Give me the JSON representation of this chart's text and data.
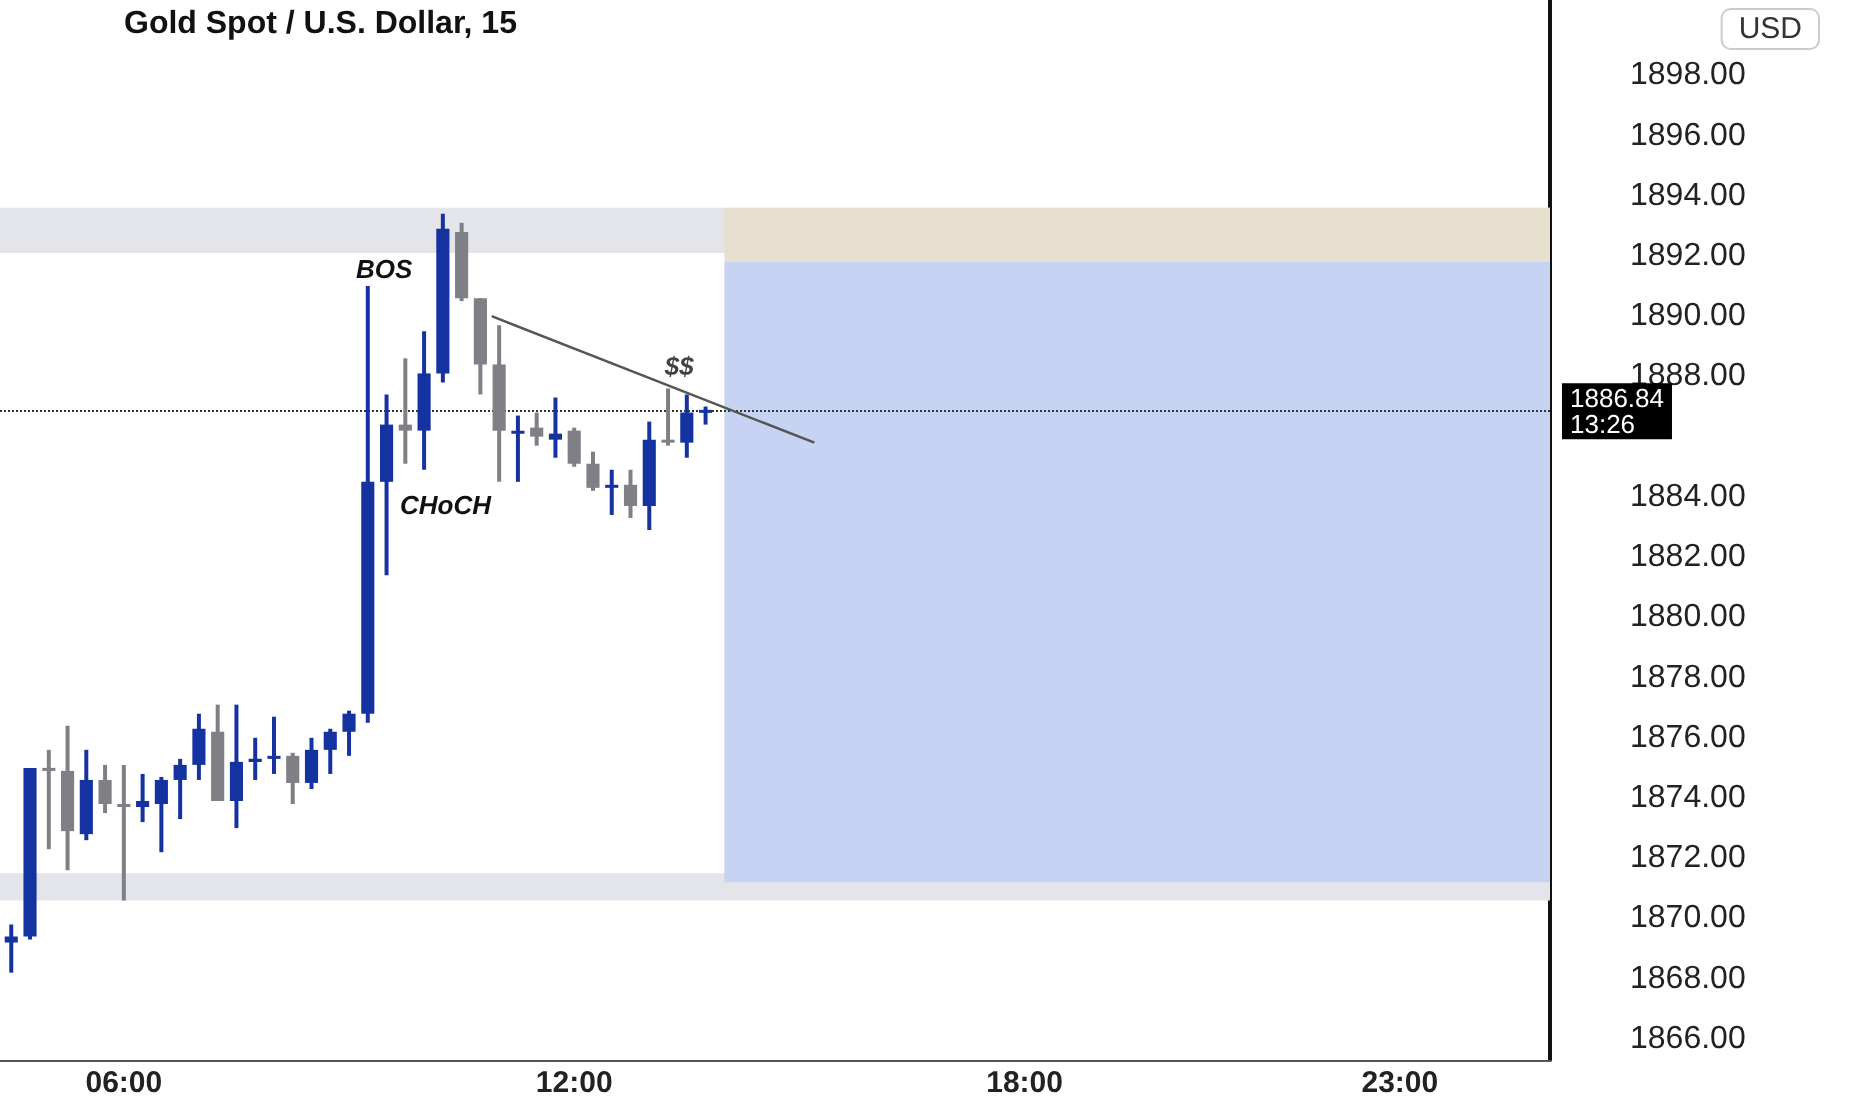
{
  "chart_data": {
    "type": "candlestick",
    "title": "Gold Spot / U.S. Dollar, 15",
    "x": [
      4.5,
      4.75,
      5,
      5.25,
      5.5,
      5.75,
      6,
      6.25,
      6.5,
      6.75,
      7,
      7.25,
      7.5,
      7.75,
      8,
      8.25,
      8.5,
      8.75,
      9,
      9.25,
      9.5,
      9.75,
      10,
      10.25,
      10.5,
      10.75,
      11,
      11.25,
      11.5,
      11.75,
      12,
      12.25,
      12.5,
      12.75,
      13,
      13.25,
      13.5,
      13.75
    ],
    "ohlc": [
      [
        1869.2,
        1869.8,
        1868.2,
        1869.4
      ],
      [
        1869.4,
        1875.0,
        1869.3,
        1875.0
      ],
      [
        1875.0,
        1875.6,
        1872.3,
        1874.9
      ],
      [
        1874.9,
        1876.4,
        1871.6,
        1872.9
      ],
      [
        1872.8,
        1875.6,
        1872.6,
        1874.6
      ],
      [
        1874.6,
        1875.1,
        1873.5,
        1873.8
      ],
      [
        1873.8,
        1875.1,
        1870.6,
        1873.7
      ],
      [
        1873.7,
        1874.8,
        1873.2,
        1873.9
      ],
      [
        1873.8,
        1874.7,
        1872.2,
        1874.6
      ],
      [
        1874.6,
        1875.3,
        1873.3,
        1875.1
      ],
      [
        1875.1,
        1876.8,
        1874.6,
        1876.3
      ],
      [
        1876.2,
        1877.1,
        1873.9,
        1873.9
      ],
      [
        1873.9,
        1877.1,
        1873.0,
        1875.2
      ],
      [
        1875.2,
        1876.0,
        1874.6,
        1875.3
      ],
      [
        1875.3,
        1876.7,
        1874.8,
        1875.4
      ],
      [
        1875.4,
        1875.5,
        1873.8,
        1874.5
      ],
      [
        1874.5,
        1876.0,
        1874.3,
        1875.6
      ],
      [
        1875.6,
        1876.3,
        1874.8,
        1876.2
      ],
      [
        1876.2,
        1876.9,
        1875.4,
        1876.8
      ],
      [
        1876.8,
        1891.0,
        1876.5,
        1884.5
      ],
      [
        1884.5,
        1887.4,
        1881.4,
        1886.4
      ],
      [
        1886.4,
        1888.6,
        1885.1,
        1886.2
      ],
      [
        1886.2,
        1889.5,
        1884.9,
        1888.1
      ],
      [
        1888.1,
        1893.4,
        1887.8,
        1892.9
      ],
      [
        1892.8,
        1893.1,
        1890.5,
        1890.6
      ],
      [
        1890.6,
        1890.6,
        1887.4,
        1888.4
      ],
      [
        1888.4,
        1889.7,
        1884.5,
        1886.2
      ],
      [
        1886.1,
        1886.7,
        1884.5,
        1886.2
      ],
      [
        1886.3,
        1886.8,
        1885.7,
        1886.0
      ],
      [
        1885.9,
        1887.3,
        1885.3,
        1886.1
      ],
      [
        1886.2,
        1886.3,
        1885.0,
        1885.1
      ],
      [
        1885.1,
        1885.5,
        1884.2,
        1884.3
      ],
      [
        1884.3,
        1884.9,
        1883.4,
        1884.4
      ],
      [
        1884.4,
        1884.9,
        1883.3,
        1883.7
      ],
      [
        1883.7,
        1886.5,
        1882.9,
        1885.9
      ],
      [
        1885.9,
        1887.6,
        1885.7,
        1885.8
      ],
      [
        1885.8,
        1887.4,
        1885.3,
        1886.8
      ],
      [
        1886.8,
        1887.0,
        1886.4,
        1886.84
      ]
    ],
    "colors": [
      "#1533a0",
      "#1533a0",
      "#7f7f86",
      "#7f7f86",
      "#1533a0",
      "#7f7f86",
      "#7f7f86",
      "#1533a0",
      "#1533a0",
      "#1533a0",
      "#1533a0",
      "#7f7f86",
      "#1533a0",
      "#1533a0",
      "#1533a0",
      "#7f7f86",
      "#1533a0",
      "#1533a0",
      "#1533a0",
      "#1533a0",
      "#1533a0",
      "#7f7f86",
      "#1533a0",
      "#1533a0",
      "#7f7f86",
      "#7f7f86",
      "#7f7f86",
      "#1533a0",
      "#7f7f86",
      "#1533a0",
      "#7f7f86",
      "#7f7f86",
      "#1533a0",
      "#7f7f86",
      "#1533a0",
      "#7f7f86",
      "#1533a0",
      "#1533a0"
    ],
    "series": [
      {
        "type": "line",
        "color": "#555555",
        "x": [
          10.9,
          15.2
        ],
        "values": [
          1890.0,
          1885.8
        ]
      }
    ],
    "xlim": [
      4.35,
      25
    ],
    "xticks": [
      {
        "value": 6,
        "label": "06:00"
      },
      {
        "value": 12,
        "label": "12:00"
      },
      {
        "value": 18,
        "label": "18:00"
      },
      {
        "value": 23,
        "label": "23:00"
      }
    ],
    "ylim": [
      1865.3,
      1900.5
    ],
    "yticks": [
      {
        "value": 1866,
        "label": "1866.00"
      },
      {
        "value": 1868,
        "label": "1868.00"
      },
      {
        "value": 1870,
        "label": "1870.00"
      },
      {
        "value": 1872,
        "label": "1872.00"
      },
      {
        "value": 1874,
        "label": "1874.00"
      },
      {
        "value": 1876,
        "label": "1876.00"
      },
      {
        "value": 1878,
        "label": "1878.00"
      },
      {
        "value": 1880,
        "label": "1880.00"
      },
      {
        "value": 1882,
        "label": "1882.00"
      },
      {
        "value": 1884,
        "label": "1884.00"
      },
      {
        "value": 1888,
        "label": "1888.00"
      },
      {
        "value": 1890,
        "label": "1890.00"
      },
      {
        "value": 1892,
        "label": "1892.00"
      },
      {
        "value": 1894,
        "label": "1894.00"
      },
      {
        "value": 1896,
        "label": "1896.00"
      },
      {
        "value": 1898,
        "label": "1898.00"
      }
    ],
    "bands": [
      {
        "axis": "y",
        "from": 1892.1,
        "to": 1893.6,
        "color": "#e3e5ea"
      },
      {
        "axis": "y",
        "from": 1870.6,
        "to": 1871.5,
        "color": "#e3e5ea"
      },
      {
        "axis": "y",
        "from": 1891.8,
        "to": 1893.6,
        "color": "#e8e0cf"
      },
      {
        "axis": "y",
        "from": 1871.2,
        "to": 1891.8,
        "color": "#c6d3f2"
      }
    ],
    "ref_lines": [
      {
        "axis": "y",
        "value": 1886.84,
        "label": "1886.84",
        "line_style": "dotted",
        "color": "#333333"
      }
    ],
    "annotations": [
      "13:26",
      "USD",
      "BOS",
      "CHoCH",
      {
        "text": "$$",
        "x": 13.4,
        "y": 1887.8
      }
    ],
    "line_style": "solid"
  }
}
